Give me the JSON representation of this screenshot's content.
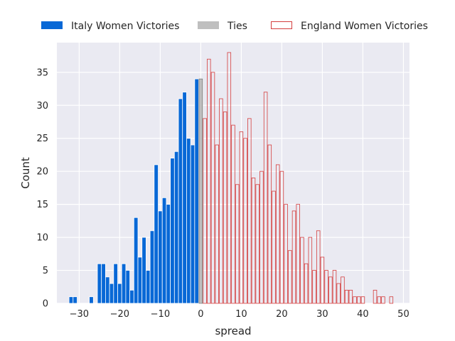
{
  "chart_data": {
    "type": "bar",
    "subtype": "histogram",
    "xlabel": "spread",
    "ylabel": "Count",
    "xlim": [
      -35.5,
      51.5
    ],
    "ylim": [
      0,
      39.5
    ],
    "xticks": [
      -30,
      -20,
      -10,
      0,
      10,
      20,
      30,
      40,
      50
    ],
    "yticks": [
      0,
      5,
      10,
      15,
      20,
      25,
      30,
      35
    ],
    "grid": true,
    "legend_position": "top",
    "series": [
      {
        "name": "Italy Women Victories",
        "style": "filled",
        "color": "#0868d6",
        "x": [
          -32,
          -31,
          -27,
          -25,
          -24,
          -23,
          -22,
          -21,
          -20,
          -19,
          -18,
          -17,
          -16,
          -15,
          -14,
          -13,
          -12,
          -11,
          -10,
          -9,
          -8,
          -7,
          -6,
          -5,
          -4,
          -3,
          -2,
          -1
        ],
        "values": [
          1,
          1,
          1,
          6,
          6,
          4,
          3,
          6,
          3,
          6,
          5,
          2,
          13,
          7,
          10,
          5,
          11,
          21,
          14,
          16,
          15,
          22,
          23,
          31,
          32,
          25,
          24,
          34
        ]
      },
      {
        "name": "Ties",
        "style": "filled",
        "color": "#bfbfbf",
        "x": [
          0
        ],
        "values": [
          34
        ]
      },
      {
        "name": "England Women Victories",
        "style": "outline",
        "color": "#d43d3d",
        "x": [
          1,
          2,
          3,
          4,
          5,
          6,
          7,
          8,
          9,
          10,
          11,
          12,
          13,
          14,
          15,
          16,
          17,
          18,
          19,
          20,
          21,
          22,
          23,
          24,
          25,
          26,
          27,
          28,
          29,
          30,
          31,
          32,
          33,
          34,
          35,
          36,
          37,
          38,
          39,
          40,
          41,
          43,
          44,
          45,
          47
        ],
        "values": [
          28,
          37,
          35,
          24,
          31,
          29,
          38,
          27,
          18,
          26,
          25,
          28,
          19,
          18,
          20,
          32,
          24,
          17,
          21,
          20,
          15,
          8,
          14,
          15,
          10,
          6,
          10,
          5,
          11,
          7,
          5,
          4,
          5,
          3,
          4,
          2,
          2,
          1,
          1,
          1,
          0,
          2,
          1,
          1,
          1
        ]
      }
    ]
  }
}
